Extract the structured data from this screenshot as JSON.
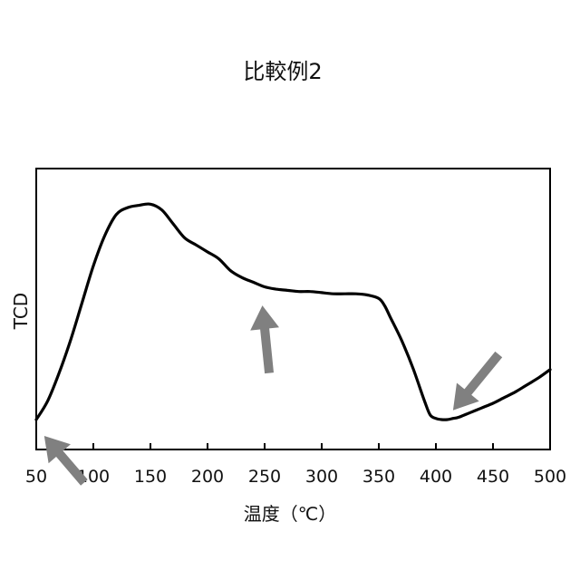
{
  "chart_data": {
    "type": "line",
    "title": "比較例2",
    "xlabel": "温度（℃）",
    "ylabel": "TCD",
    "xlim": [
      50,
      500
    ],
    "ylim": [
      0,
      1
    ],
    "y_ticks_shown": false,
    "grid": false,
    "legend": "none",
    "x_ticks": [
      {
        "value": 50,
        "label": "50"
      },
      {
        "value": 100,
        "label": "100"
      },
      {
        "value": 150,
        "label": "150"
      },
      {
        "value": 200,
        "label": "200"
      },
      {
        "value": 250,
        "label": "250"
      },
      {
        "value": 300,
        "label": "300"
      },
      {
        "value": 350,
        "label": "350"
      },
      {
        "value": 400,
        "label": "400"
      },
      {
        "value": 450,
        "label": "450"
      },
      {
        "value": 500,
        "label": "500"
      }
    ],
    "series": [
      {
        "color": "#000000",
        "x": [
          50,
          60,
          70,
          80,
          90,
          100,
          110,
          120,
          130,
          140,
          150,
          160,
          170,
          180,
          190,
          200,
          210,
          220,
          230,
          240,
          250,
          260,
          270,
          280,
          290,
          300,
          310,
          320,
          330,
          340,
          350,
          355,
          360,
          370,
          380,
          390,
          395,
          400,
          405,
          410,
          415,
          420,
          430,
          440,
          450,
          460,
          470,
          480,
          490,
          500
        ],
        "y": [
          0.07,
          0.15,
          0.27,
          0.41,
          0.57,
          0.73,
          0.86,
          0.95,
          0.98,
          0.99,
          0.995,
          0.97,
          0.91,
          0.85,
          0.82,
          0.79,
          0.76,
          0.71,
          0.68,
          0.66,
          0.64,
          0.63,
          0.625,
          0.62,
          0.62,
          0.615,
          0.61,
          0.61,
          0.61,
          0.605,
          0.59,
          0.56,
          0.51,
          0.41,
          0.29,
          0.15,
          0.09,
          0.075,
          0.07,
          0.07,
          0.075,
          0.08,
          0.1,
          0.12,
          0.14,
          0.165,
          0.19,
          0.22,
          0.25,
          0.285
        ]
      }
    ],
    "annotations": [
      {
        "type": "arrow",
        "color": "#808080",
        "from": [
          92,
          -0.2
        ],
        "to": [
          57,
          0.0
        ]
      },
      {
        "type": "arrow",
        "color": "#808080",
        "from": [
          254,
          0.27
        ],
        "to": [
          248,
          0.56
        ]
      },
      {
        "type": "arrow",
        "color": "#808080",
        "from": [
          455,
          0.35
        ],
        "to": [
          415,
          0.11
        ]
      }
    ]
  }
}
